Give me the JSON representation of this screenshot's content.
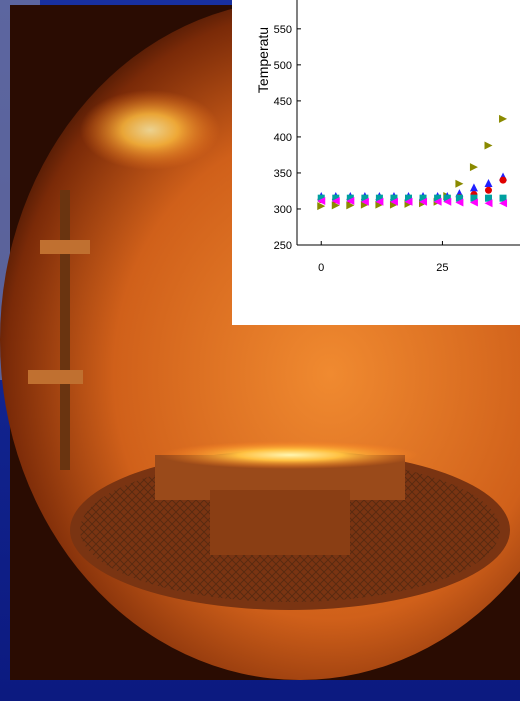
{
  "chart_data": {
    "type": "scatter",
    "y_label": "Temperatu",
    "x": [
      0,
      3,
      6,
      9,
      12,
      15,
      18,
      21,
      24,
      26,
      28.5,
      31.5,
      34.5,
      37.5
    ],
    "xlim": [
      -5,
      41
    ],
    "xticks": [
      0,
      25
    ],
    "ylim": [
      250,
      590
    ],
    "yticks": [
      250,
      300,
      350,
      400,
      450,
      500,
      550
    ],
    "series": [
      {
        "color": "#8a8a00",
        "marker": "triangle-right",
        "values": [
          304,
          305,
          305,
          306,
          306,
          306,
          307,
          308,
          310,
          318,
          335,
          358,
          388,
          425
        ]
      },
      {
        "color": "#2020ff",
        "marker": "triangle-up",
        "values": [
          318,
          318,
          318,
          318,
          318,
          318,
          318,
          318,
          318,
          318,
          322,
          330,
          336,
          345
        ]
      },
      {
        "color": "#e00000",
        "marker": "circle",
        "values": [
          313,
          313,
          313,
          313,
          313,
          313,
          313,
          313,
          313,
          314,
          316,
          320,
          326,
          340
        ]
      },
      {
        "color": "#00a0a0",
        "marker": "square",
        "values": [
          315,
          315,
          315,
          315,
          315,
          315,
          315,
          315,
          315,
          315,
          315,
          315,
          315,
          315
        ]
      },
      {
        "color": "#ff00ff",
        "marker": "triangle-left",
        "values": [
          311,
          311,
          311,
          310,
          310,
          310,
          310,
          310,
          310,
          310,
          309,
          309,
          308,
          308
        ]
      }
    ]
  }
}
